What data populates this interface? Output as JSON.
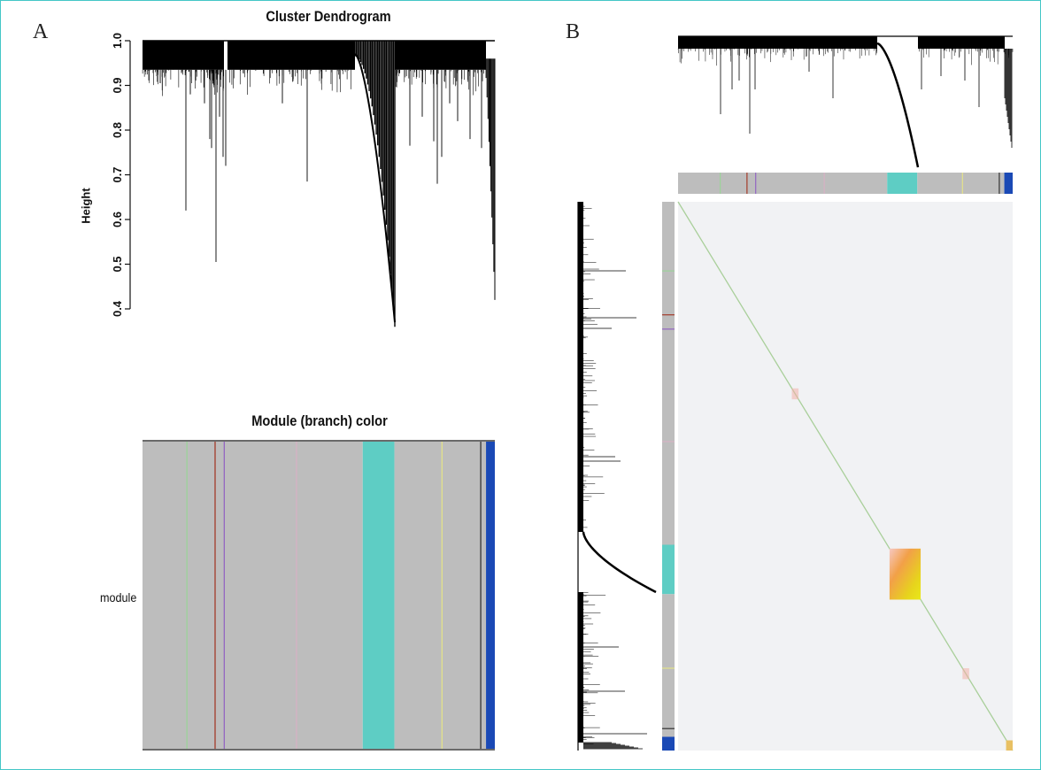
{
  "panels": {
    "a": "A",
    "b": "B"
  },
  "chart_data": [
    {
      "type": "dendrogram",
      "title": "Cluster Dendrogram",
      "ylabel": "Height",
      "ylim": [
        0.4,
        1.0
      ],
      "yticks": [
        "1.0",
        "0.9",
        "0.8",
        "0.7",
        "0.6",
        "0.5",
        "0.4"
      ],
      "colors": {
        "tree": "#000000"
      }
    },
    {
      "type": "heatmap",
      "title": "Module (branch) color",
      "row_labels": [
        "module"
      ],
      "colors": {
        "grey": "#bdbdbd",
        "turquoise": "#5ecdc4",
        "blue": "#1a49b5",
        "brown": "#a33b2a",
        "purple": "#9366c2",
        "green": "#9cd39a",
        "yellow": "#e4e28a",
        "black": "#333333",
        "pink": "#d6b2c4"
      },
      "modules": [
        {
          "color": "grey",
          "start": 0.0,
          "end": 0.625
        },
        {
          "color": "turquoise",
          "start": 0.625,
          "end": 0.715
        },
        {
          "color": "grey",
          "start": 0.715,
          "end": 0.975
        },
        {
          "color": "blue",
          "start": 0.975,
          "end": 1.0
        }
      ],
      "thin_lines": [
        {
          "color": "green",
          "pos": 0.126
        },
        {
          "color": "brown",
          "pos": 0.206
        },
        {
          "color": "purple",
          "pos": 0.232
        },
        {
          "color": "pink",
          "pos": 0.437
        },
        {
          "color": "yellow",
          "pos": 0.85
        },
        {
          "color": "black",
          "pos": 0.96
        }
      ]
    },
    {
      "type": "heatmap",
      "title": "",
      "colors": {
        "background": "#f1f2f4",
        "diagonal": "#a9cf9a",
        "hot_low": "#f3b0a8",
        "hot_mid": "#f0a03c",
        "hot_high": "#e9e51b",
        "blue_corner": "#e8c063"
      },
      "blocks": [
        {
          "module": "turquoise",
          "start": 0.632,
          "end": 0.725
        },
        {
          "module": "small-1",
          "start": 0.34,
          "end": 0.36
        },
        {
          "module": "small-2",
          "start": 0.85,
          "end": 0.87
        },
        {
          "module": "blue",
          "start": 0.975,
          "end": 1.0
        }
      ]
    }
  ]
}
